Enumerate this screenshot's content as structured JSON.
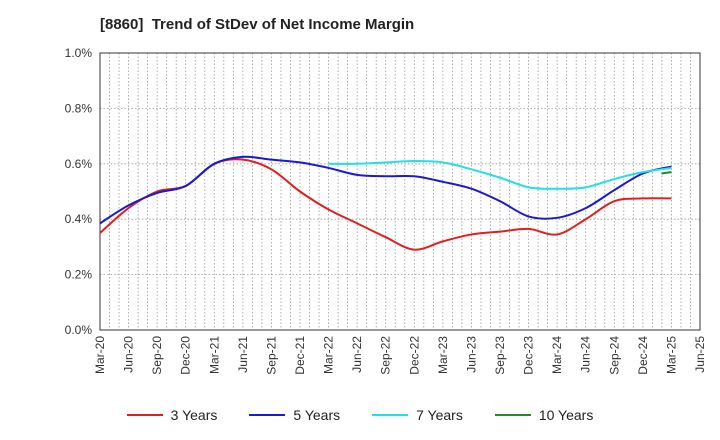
{
  "chart_data": {
    "type": "line",
    "title": "[8860]  Trend of StDev of Net Income Margin",
    "xlabel": "",
    "ylabel": "",
    "ylim": [
      0,
      1.0
    ],
    "yticks": [
      "0.0%",
      "0.2%",
      "0.4%",
      "0.6%",
      "0.8%",
      "1.0%"
    ],
    "ytick_values": [
      0,
      0.2,
      0.4,
      0.6,
      0.8,
      1.0
    ],
    "categories": [
      "Mar-20",
      "Jun-20",
      "Sep-20",
      "Dec-20",
      "Mar-21",
      "Jun-21",
      "Sep-21",
      "Dec-21",
      "Mar-22",
      "Jun-22",
      "Sep-22",
      "Dec-22",
      "Mar-23",
      "Jun-23",
      "Sep-23",
      "Dec-23",
      "Mar-24",
      "Jun-24",
      "Sep-24",
      "Dec-24",
      "Mar-25",
      "Jun-25"
    ],
    "grid": true,
    "legend_position": "bottom",
    "series": [
      {
        "name": "3 Years",
        "color": "#e02020",
        "values": [
          0.35,
          0.44,
          0.5,
          0.52,
          0.6,
          0.615,
          0.58,
          0.5,
          0.435,
          0.385,
          0.335,
          0.29,
          0.32,
          0.345,
          0.355,
          0.365,
          0.345,
          0.4,
          0.465,
          0.475,
          0.475,
          null
        ]
      },
      {
        "name": "5 Years",
        "color": "#1a1ad0",
        "values": [
          0.385,
          0.45,
          0.495,
          0.52,
          0.6,
          0.625,
          0.615,
          0.605,
          0.585,
          0.56,
          0.555,
          0.555,
          0.535,
          0.51,
          0.465,
          0.41,
          0.405,
          0.44,
          0.505,
          0.565,
          0.59,
          null
        ]
      },
      {
        "name": "7 Years",
        "color": "#20e0e8",
        "values": [
          null,
          null,
          null,
          null,
          null,
          null,
          null,
          null,
          0.6,
          0.6,
          0.605,
          0.61,
          0.605,
          0.58,
          0.55,
          0.515,
          0.51,
          0.515,
          0.545,
          0.57,
          0.585,
          null
        ]
      },
      {
        "name": "10 Years",
        "color": "#22882a",
        "values": [
          null,
          null,
          null,
          null,
          null,
          null,
          null,
          null,
          null,
          null,
          null,
          null,
          null,
          null,
          null,
          null,
          null,
          null,
          null,
          null,
          0.57,
          null
        ],
        "start_value": 0.565
      }
    ]
  }
}
